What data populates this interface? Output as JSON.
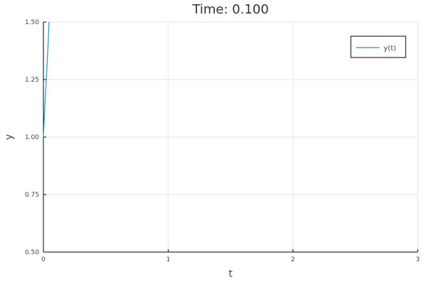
{
  "chart_data": {
    "type": "line",
    "title": "Time: 0.100",
    "xlabel": "t",
    "ylabel": "y",
    "xlim": [
      0,
      3
    ],
    "ylim": [
      0.5,
      1.5
    ],
    "xticks": [
      0,
      1,
      2,
      3
    ],
    "xtick_labels": [
      "0",
      "1",
      "2",
      "3"
    ],
    "yticks": [
      0.5,
      0.75,
      1.0,
      1.25,
      1.5
    ],
    "ytick_labels": [
      "0.50",
      "0.75",
      "1.00",
      "1.25",
      "1.50"
    ],
    "grid": true,
    "legend": {
      "position": "top-right"
    },
    "series": [
      {
        "name": "y(t)",
        "color": "#1f94d0",
        "x": [
          0.0,
          0.01,
          0.02,
          0.03,
          0.04,
          0.045
        ],
        "y": [
          1.0,
          1.12,
          1.22,
          1.32,
          1.43,
          1.5
        ]
      }
    ]
  }
}
